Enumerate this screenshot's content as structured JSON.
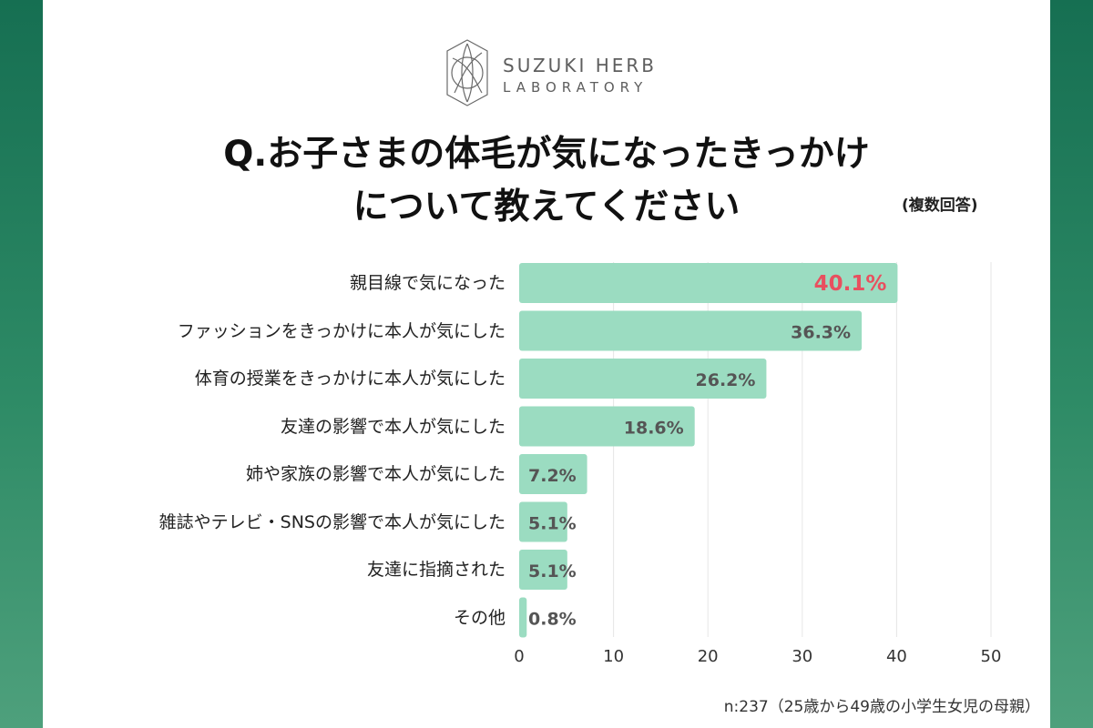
{
  "brand": {
    "name_line1": "SUZUKI HERB",
    "name_line2": "LABORATORY",
    "logo_icon": "leaf-circle-icon"
  },
  "header": {
    "title_line1": "Q.お子さまの体毛が気になったきっかけ",
    "title_line2": "について教えてください",
    "note": "(複数回答)"
  },
  "colors": {
    "bar": "#9bdcc1",
    "highlight_label": "#e8505f",
    "label": "#555555",
    "grid": "#e6e6e6",
    "frame": "#1e7a5a"
  },
  "chart_data": {
    "type": "bar",
    "orientation": "horizontal",
    "categories": [
      "親目線で気になった",
      "ファッションをきっかけに本人が気にした",
      "体育の授業をきっかけに本人が気にした",
      "友達の影響で本人が気にした",
      "姉や家族の影響で本人が気にした",
      "雑誌やテレビ・SNSの影響で本人が気にした",
      "友達に指摘された",
      "その他"
    ],
    "values": [
      40.1,
      36.3,
      26.2,
      18.6,
      7.2,
      5.1,
      5.1,
      0.8
    ],
    "value_labels": [
      "40.1%",
      "36.3%",
      "26.2%",
      "18.6%",
      "7.2%",
      "5.1%",
      "5.1%",
      "0.8%"
    ],
    "highlight_index": 0,
    "xlim": [
      0,
      50
    ],
    "xticks": [
      0,
      10,
      20,
      30,
      40,
      50
    ],
    "grid": true
  },
  "footer": {
    "sample_note": "n:237（25歳から49歳の小学生女児の母親）"
  }
}
